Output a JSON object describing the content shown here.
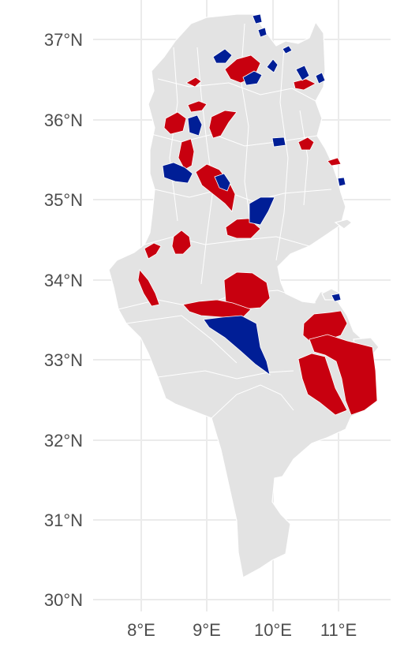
{
  "map": {
    "lat_labels": [
      "37°N",
      "36°N",
      "35°N",
      "34°N",
      "33°N",
      "32°N",
      "31°N",
      "30°N"
    ],
    "lon_labels": [
      "8°E",
      "9°E",
      "10°E",
      "11°E"
    ],
    "colors": {
      "background": "#ffffff",
      "land": "#e3e3e3",
      "border": "#ffffff",
      "grid": "#ebebeb",
      "red": "#c8000f",
      "blue": "#001e96"
    }
  }
}
